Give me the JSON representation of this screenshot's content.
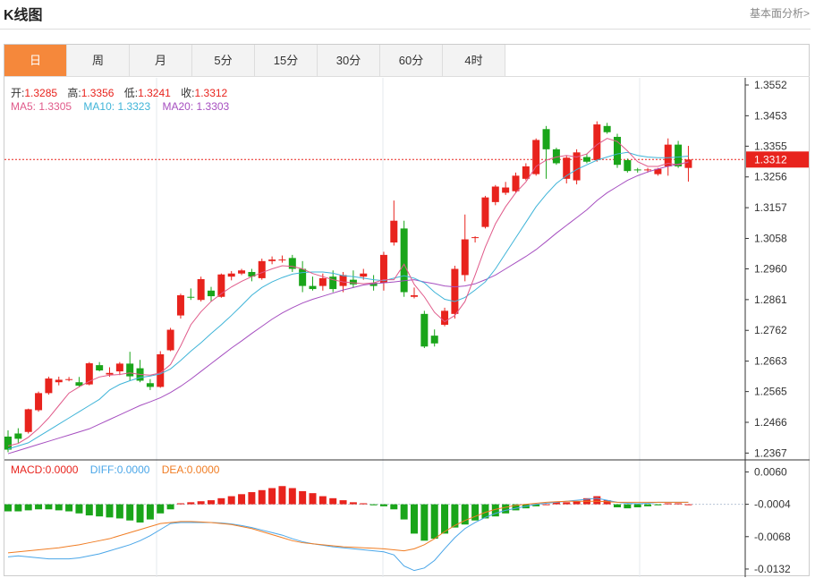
{
  "header": {
    "title": "K线图",
    "link": "基本面分析>"
  },
  "tabs": [
    "日",
    "周",
    "月",
    "5分",
    "15分",
    "30分",
    "60分",
    "4时"
  ],
  "active_tab": 0,
  "ohlc_legend": {
    "open_label": "开:",
    "open": "1.3285",
    "high_label": "高:",
    "high": "1.3356",
    "low_label": "低:",
    "low": "1.3241",
    "close_label": "收:",
    "close": "1.3312"
  },
  "ma_legend": {
    "ma5_label": "MA5:",
    "ma5": "1.3305",
    "ma10_label": "MA10:",
    "ma10": "1.3323",
    "ma20_label": "MA20:",
    "ma20": "1.3303"
  },
  "macd_legend": {
    "macd_label": "MACD:",
    "macd": "0.0000",
    "diff_label": "DIFF:",
    "diff": "0.0000",
    "dea_label": "DEA:",
    "dea": "0.0000"
  },
  "colors": {
    "up": "#e8231d",
    "down": "#1aa51a",
    "ma5": "#e05a8a",
    "ma10": "#3fb4d8",
    "ma20": "#a64fc0",
    "diff": "#4aa6e8",
    "dea": "#f07d24",
    "accent": "#f5883b"
  },
  "current_price": "1.3312",
  "chart_data": {
    "type": "candlestick",
    "price_axis_ticks": [
      "1.3552",
      "1.3453",
      "1.3355",
      "1.3256",
      "1.3157",
      "1.3058",
      "1.2960",
      "1.2861",
      "1.2762",
      "1.2663",
      "1.2565",
      "1.2466",
      "1.2367"
    ],
    "price_ylim": [
      1.2345,
      1.3575
    ],
    "macd_axis_ticks": [
      "0.0060",
      "-0.0004",
      "-0.0068",
      "-0.0132"
    ],
    "macd_ylim": [
      -0.0148,
      0.0082
    ],
    "candles": [
      [
        1.242,
        1.244,
        1.237,
        1.2378
      ],
      [
        1.243,
        1.2447,
        1.24,
        1.2413
      ],
      [
        1.2435,
        1.251,
        1.243,
        1.2508
      ],
      [
        1.2505,
        1.2565,
        1.25,
        1.256
      ],
      [
        1.256,
        1.2613,
        1.2555,
        1.2607
      ],
      [
        1.2595,
        1.2613,
        1.2585,
        1.2603
      ],
      [
        1.2603,
        1.2612,
        1.2598,
        1.2605
      ],
      [
        1.2595,
        1.2612,
        1.258,
        1.2584
      ],
      [
        1.2588,
        1.266,
        1.2585,
        1.2656
      ],
      [
        1.265,
        1.266,
        1.263,
        1.2633
      ],
      [
        1.262,
        1.2643,
        1.2613,
        1.2625
      ],
      [
        1.263,
        1.266,
        1.2618,
        1.2655
      ],
      [
        1.2655,
        1.2693,
        1.26,
        1.2614
      ],
      [
        1.264,
        1.2667,
        1.2595,
        1.26
      ],
      [
        1.2592,
        1.2605,
        1.257,
        1.258
      ],
      [
        1.258,
        1.2695,
        1.2577,
        1.2685
      ],
      [
        1.2698,
        1.277,
        1.2695,
        1.2764
      ],
      [
        1.281,
        1.288,
        1.28,
        1.2875
      ],
      [
        1.287,
        1.2897,
        1.286,
        1.2868
      ],
      [
        1.286,
        1.2935,
        1.2855,
        1.2927
      ],
      [
        1.289,
        1.2902,
        1.2855,
        1.2872
      ],
      [
        1.287,
        1.2945,
        1.2867,
        1.2942
      ],
      [
        1.2935,
        1.2953,
        1.2923,
        1.2945
      ],
      [
        1.2945,
        1.296,
        1.294,
        1.2955
      ],
      [
        1.295,
        1.296,
        1.292,
        1.2935
      ],
      [
        1.293,
        1.2993,
        1.2925,
        1.2985
      ],
      [
        1.2985,
        1.3,
        1.2975,
        1.299
      ],
      [
        1.299,
        1.3003,
        1.298,
        1.299
      ],
      [
        1.2995,
        1.3005,
        1.295,
        1.296
      ],
      [
        1.296,
        1.2985,
        1.2885,
        1.2905
      ],
      [
        1.2905,
        1.2935,
        1.289,
        1.2895
      ],
      [
        1.2905,
        1.2945,
        1.289,
        1.293
      ],
      [
        1.2935,
        1.2955,
        1.2885,
        1.2895
      ],
      [
        1.2905,
        1.295,
        1.2885,
        1.294
      ],
      [
        1.2925,
        1.2955,
        1.29,
        1.291
      ],
      [
        1.2935,
        1.296,
        1.2925,
        1.2945
      ],
      [
        1.2915,
        1.294,
        1.289,
        1.2905
      ],
      [
        1.2915,
        1.3015,
        1.289,
        1.3005
      ],
      [
        1.3045,
        1.318,
        1.3035,
        1.3115
      ],
      [
        1.309,
        1.3115,
        1.287,
        1.2885
      ],
      [
        1.287,
        1.29,
        1.2865,
        1.2875
      ],
      [
        1.2815,
        1.2825,
        1.2705,
        1.271
      ],
      [
        1.2745,
        1.2765,
        1.271,
        1.272
      ],
      [
        1.278,
        1.2835,
        1.2775,
        1.2825
      ],
      [
        1.2815,
        1.297,
        1.28,
        1.296
      ],
      [
        1.294,
        1.3135,
        1.292,
        1.3055
      ],
      [
        1.306,
        1.3065,
        1.3045,
        1.3062
      ],
      [
        1.3095,
        1.3195,
        1.309,
        1.319
      ],
      [
        1.3175,
        1.323,
        1.3165,
        1.3225
      ],
      [
        1.3205,
        1.324,
        1.3198,
        1.3222
      ],
      [
        1.321,
        1.327,
        1.3205,
        1.326
      ],
      [
        1.325,
        1.33,
        1.3245,
        1.329
      ],
      [
        1.3265,
        1.338,
        1.326,
        1.3375
      ],
      [
        1.341,
        1.342,
        1.325,
        1.3345
      ],
      [
        1.3345,
        1.335,
        1.3295,
        1.33
      ],
      [
        1.325,
        1.3325,
        1.3235,
        1.3318
      ],
      [
        1.3245,
        1.3345,
        1.3232,
        1.3335
      ],
      [
        1.332,
        1.333,
        1.33,
        1.3305
      ],
      [
        1.331,
        1.3435,
        1.3305,
        1.3425
      ],
      [
        1.342,
        1.343,
        1.3395,
        1.34
      ],
      [
        1.3385,
        1.3395,
        1.3285,
        1.3295
      ],
      [
        1.331,
        1.3315,
        1.327,
        1.3275
      ],
      [
        1.328,
        1.3285,
        1.327,
        1.3278
      ],
      [
        1.3278,
        1.3285,
        1.327,
        1.328
      ],
      [
        1.3265,
        1.3285,
        1.326,
        1.3282
      ],
      [
        1.329,
        1.338,
        1.326,
        1.336
      ],
      [
        1.336,
        1.3372,
        1.3285,
        1.329
      ],
      [
        1.3285,
        1.3356,
        1.3241,
        1.3312
      ]
    ],
    "ma5": [
      1.239,
      1.2398,
      1.2418,
      1.2446,
      1.248,
      1.252,
      1.256,
      1.258,
      1.2598,
      1.2612,
      1.2618,
      1.262,
      1.2625,
      1.262,
      1.2618,
      1.2625,
      1.2652,
      1.2712,
      1.278,
      1.2822,
      1.2855,
      1.288,
      1.2902,
      1.292,
      1.2935,
      1.2948,
      1.296,
      1.297,
      1.2968,
      1.296,
      1.2945,
      1.2935,
      1.2925,
      1.2918,
      1.2915,
      1.2912,
      1.2915,
      1.2925,
      1.2925,
      1.2975,
      1.291,
      1.287,
      1.282,
      1.279,
      1.281,
      1.2855,
      1.294,
      1.303,
      1.3105,
      1.316,
      1.3205,
      1.324,
      1.329,
      1.331,
      1.332,
      1.3325,
      1.332,
      1.333,
      1.336,
      1.338,
      1.337,
      1.334,
      1.3305,
      1.329,
      1.329,
      1.33,
      1.3295,
      1.3305
    ],
    "ma10": [
      1.238,
      1.239,
      1.24,
      1.242,
      1.244,
      1.246,
      1.248,
      1.25,
      1.252,
      1.254,
      1.257,
      1.2588,
      1.26,
      1.261,
      1.2615,
      1.2622,
      1.2638,
      1.2665,
      1.2695,
      1.2722,
      1.2752,
      1.278,
      1.281,
      1.2842,
      1.2875,
      1.29,
      1.2918,
      1.2932,
      1.2943,
      1.2948,
      1.295,
      1.295,
      1.2946,
      1.2938,
      1.2935,
      1.293,
      1.2925,
      1.2922,
      1.293,
      1.2938,
      1.293,
      1.2915,
      1.2885,
      1.2862,
      1.2855,
      1.2868,
      1.2892,
      1.2918,
      1.296,
      1.301,
      1.306,
      1.311,
      1.316,
      1.32,
      1.3235,
      1.326,
      1.328,
      1.3295,
      1.331,
      1.332,
      1.333,
      1.3335,
      1.3325,
      1.332,
      1.3318,
      1.3318,
      1.332,
      1.3323
    ],
    "ma20": [
      1.2365,
      1.2375,
      1.2385,
      1.2395,
      1.2405,
      1.2415,
      1.2425,
      1.2435,
      1.2445,
      1.246,
      1.2475,
      1.249,
      1.2505,
      1.252,
      1.2532,
      1.2545,
      1.2562,
      1.2582,
      1.2605,
      1.263,
      1.2655,
      1.268,
      1.2705,
      1.2728,
      1.2752,
      1.2775,
      1.2798,
      1.2818,
      1.2835,
      1.285,
      1.2862,
      1.2872,
      1.2882,
      1.2892,
      1.29,
      1.2908,
      1.2912,
      1.2915,
      1.2918,
      1.2922,
      1.2925,
      1.2918,
      1.2912,
      1.2905,
      1.2902,
      1.2905,
      1.2912,
      1.2925,
      1.294,
      1.296,
      1.298,
      1.3,
      1.3022,
      1.3048,
      1.3075,
      1.31,
      1.3125,
      1.315,
      1.318,
      1.3205,
      1.3225,
      1.3245,
      1.326,
      1.3272,
      1.3282,
      1.329,
      1.3297,
      1.3303
    ],
    "macd_hist": [
      -0.0014,
      -0.0014,
      -0.0012,
      -0.001,
      -0.001,
      -0.0012,
      -0.0014,
      -0.0018,
      -0.0022,
      -0.0024,
      -0.0026,
      -0.0028,
      -0.0032,
      -0.0036,
      -0.003,
      -0.0018,
      -0.001,
      0.0002,
      0.0004,
      0.0006,
      0.0008,
      0.0012,
      0.0016,
      0.002,
      0.0024,
      0.0028,
      0.0032,
      0.0036,
      0.0032,
      0.0026,
      0.0022,
      0.0016,
      0.0012,
      0.0008,
      0.0004,
      0.0002,
      -0.0002,
      -0.0004,
      -0.001,
      -0.003,
      -0.0058,
      -0.0072,
      -0.0068,
      -0.0058,
      -0.0046,
      -0.004,
      -0.0032,
      -0.0028,
      -0.0024,
      -0.0018,
      -0.0012,
      -0.0008,
      -0.0004,
      0.0,
      0.0004,
      0.0004,
      0.0006,
      0.0012,
      0.0016,
      0.0008,
      -0.0006,
      -0.0008,
      -0.0006,
      -0.0004,
      -0.0002,
      0.0002,
      0.0002,
      0.0
    ],
    "diff": [
      -0.0108,
      -0.0106,
      -0.0108,
      -0.011,
      -0.0112,
      -0.0112,
      -0.0112,
      -0.011,
      -0.0106,
      -0.0102,
      -0.0096,
      -0.009,
      -0.0084,
      -0.0076,
      -0.0066,
      -0.0054,
      -0.0042,
      -0.004,
      -0.004,
      -0.004,
      -0.004,
      -0.0041,
      -0.0043,
      -0.0046,
      -0.005,
      -0.0055,
      -0.006,
      -0.0065,
      -0.0072,
      -0.0078,
      -0.0082,
      -0.0085,
      -0.0088,
      -0.009,
      -0.0092,
      -0.0094,
      -0.0096,
      -0.0098,
      -0.0104,
      -0.0126,
      -0.0135,
      -0.013,
      -0.0115,
      -0.0092,
      -0.007,
      -0.0052,
      -0.004,
      -0.003,
      -0.0022,
      -0.0016,
      -0.0012,
      -0.0008,
      -0.0004,
      -0.0002,
      0.0,
      0.0002,
      0.0004,
      0.0006,
      0.0008,
      0.0004,
      0.0,
      -0.0002,
      -0.0003,
      -0.0002,
      0.0,
      0.0,
      0.0,
      0.0
    ],
    "dea": [
      -0.01,
      -0.0098,
      -0.0096,
      -0.0094,
      -0.0092,
      -0.009,
      -0.0087,
      -0.0084,
      -0.008,
      -0.0076,
      -0.0072,
      -0.0066,
      -0.006,
      -0.0054,
      -0.0048,
      -0.0042,
      -0.004,
      -0.0038,
      -0.0038,
      -0.0039,
      -0.004,
      -0.0042,
      -0.0044,
      -0.0048,
      -0.0052,
      -0.0058,
      -0.0064,
      -0.007,
      -0.0076,
      -0.008,
      -0.0082,
      -0.0084,
      -0.0086,
      -0.0088,
      -0.0089,
      -0.009,
      -0.0091,
      -0.0092,
      -0.0094,
      -0.0096,
      -0.0092,
      -0.0084,
      -0.0072,
      -0.0058,
      -0.0046,
      -0.0036,
      -0.0028,
      -0.002,
      -0.0014,
      -0.001,
      -0.0006,
      -0.0004,
      -0.0002,
      0.0,
      0.0001,
      0.0002,
      0.0002,
      0.0002,
      0.0002,
      0.0001,
      0.0,
      0.0,
      0.0,
      0.0,
      0.0,
      0.0,
      0.0,
      0.0
    ]
  }
}
